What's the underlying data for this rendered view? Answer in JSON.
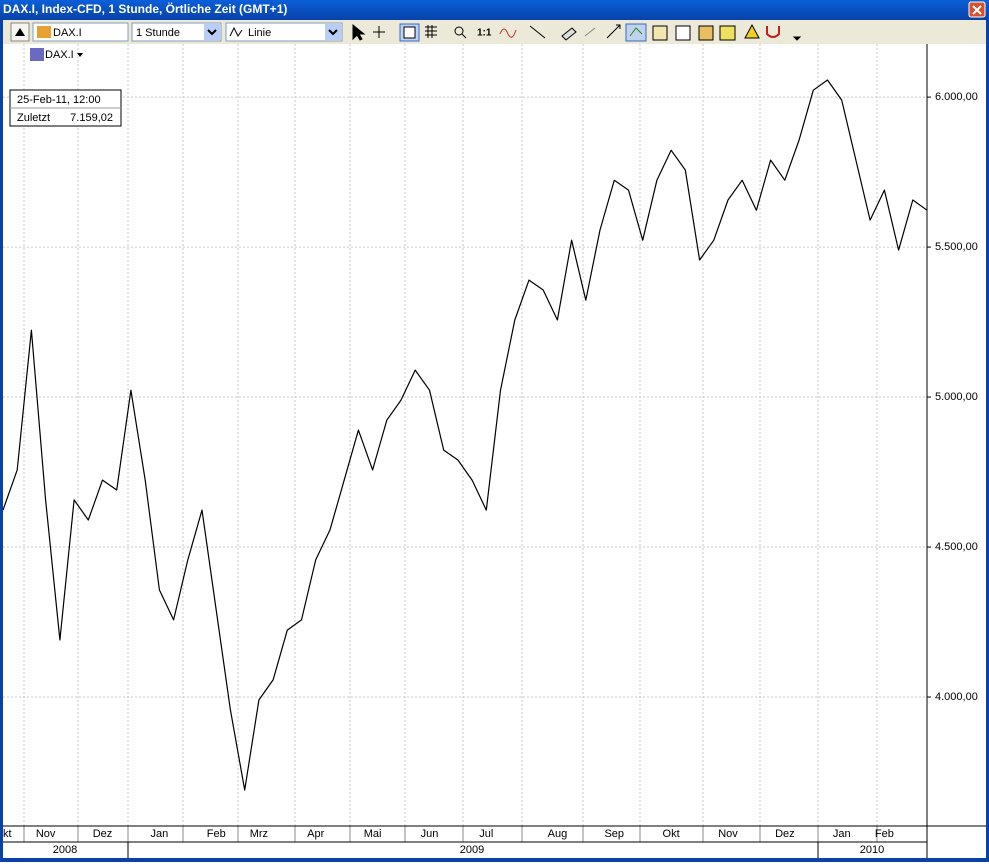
{
  "window": {
    "title": "DAX.I, Index-CFD, 1 Stunde, Örtliche Zeit (GMT+1)"
  },
  "toolbar": {
    "symbol": "DAX.I",
    "interval": "1 Stunde",
    "chart_style": "Linie",
    "zoom_label": "1:1"
  },
  "legend_symbol": "DAX.I",
  "info_box": {
    "datetime": "25-Feb-11, 12:00",
    "label": "Zuletzt",
    "value": "7.159,02"
  },
  "chart_data": {
    "type": "line",
    "categories": [
      "Okt",
      null,
      null,
      "Nov",
      null,
      null,
      null,
      "Dez",
      null,
      null,
      null,
      "Jan",
      null,
      null,
      null,
      "Feb",
      null,
      null,
      "Mrz",
      null,
      null,
      null,
      "Apr",
      null,
      null,
      null,
      "Mai",
      null,
      null,
      null,
      "Jun",
      null,
      null,
      null,
      "Jul",
      null,
      null,
      null,
      null,
      "Aug",
      null,
      null,
      null,
      "Sep",
      null,
      null,
      null,
      "Okt",
      null,
      null,
      null,
      "Nov",
      null,
      null,
      null,
      "Dez",
      null,
      null,
      null,
      "Jan",
      null,
      null,
      "Feb",
      null,
      null,
      null
    ],
    "series": [
      {
        "name": "DAX.I",
        "color": "#000000",
        "values": [
          4623,
          4757,
          5223,
          4657,
          4190,
          4657,
          4590,
          4723,
          4690,
          5023,
          4723,
          4357,
          4257,
          4457,
          4623,
          4290,
          3957,
          3690,
          3990,
          4057,
          4223,
          4257,
          4457,
          4557,
          4723,
          4890,
          4757,
          4923,
          4990,
          5090,
          5023,
          4823,
          4790,
          4723,
          4623,
          5023,
          5257,
          5390,
          5357,
          5257,
          5523,
          5323,
          5557,
          5723,
          5690,
          5523,
          5723,
          5823,
          5757,
          5457,
          5523,
          5657,
          5723,
          5623,
          5790,
          5723,
          5857,
          6023,
          6057,
          5990,
          5790,
          5590,
          5690,
          5490,
          5657,
          5623
        ]
      }
    ],
    "year_labels": [
      "2008",
      "2009",
      "2010"
    ],
    "ylim": [
      3570,
      6177
    ],
    "yticks": [
      {
        "value": 4000,
        "label": "4.000,00"
      },
      {
        "value": 4500,
        "label": "4.500,00"
      },
      {
        "value": 5000,
        "label": "5.000,00"
      },
      {
        "value": 5500,
        "label": "5.500,00"
      },
      {
        "value": 6000,
        "label": "6.000,00"
      }
    ],
    "grid": true
  }
}
